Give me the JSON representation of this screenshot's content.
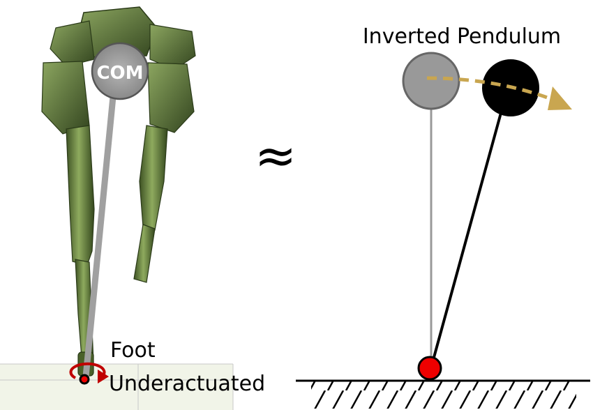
{
  "labels": {
    "com": "COM",
    "title": "Inverted Pendulum",
    "approx_symbol": "≈",
    "foot": "Foot",
    "underactuated": "Underactuated"
  },
  "colors": {
    "robot_green": "#5d7a3a",
    "robot_dark": "#2f3f1e",
    "com_fill": "#9a9a9a",
    "pendulum_gray": "#999999",
    "pendulum_black": "#000000",
    "pivot_red": "#ee0000",
    "arrow_gold": "#c9a650",
    "rotation_red": "#c00000"
  },
  "icons": {
    "robot": "bipedal-robot-illustration",
    "foot_rotation": "curved-arrow-icon",
    "motion_arrow": "dashed-arrow-icon"
  }
}
